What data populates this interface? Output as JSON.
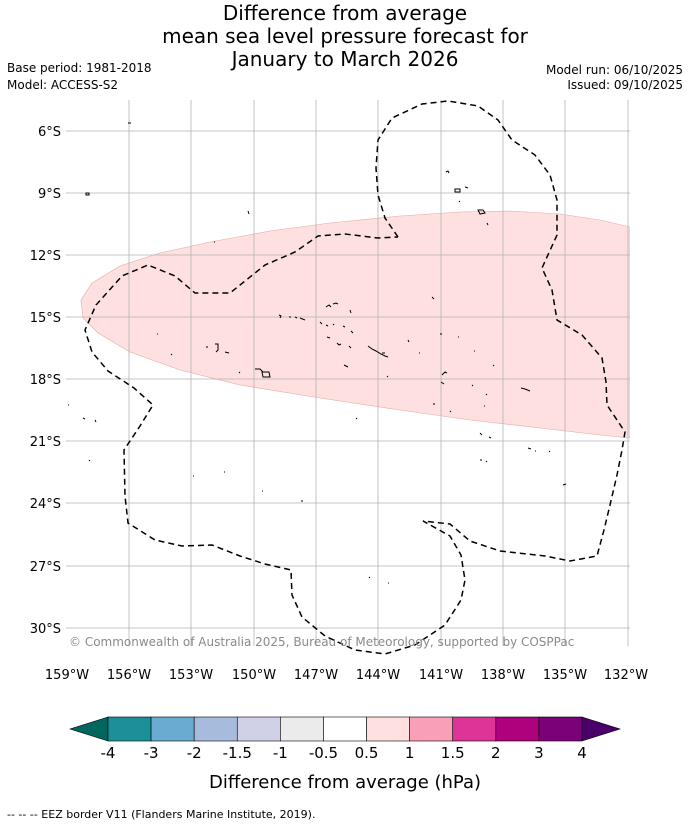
{
  "title": {
    "line1": "Difference from average",
    "line2": "mean sea level pressure forecast for",
    "line3": "January to March 2026"
  },
  "meta": {
    "base_period": "Base period: 1981-2018",
    "model": "Model: ACCESS-S2",
    "model_run": "Model run: 06/10/2025",
    "issued": "Issued: 09/10/2025"
  },
  "map": {
    "lat_labels": [
      "6°S",
      "9°S",
      "12°S",
      "15°S",
      "18°S",
      "21°S",
      "24°S",
      "27°S",
      "30°S"
    ],
    "lon_labels": [
      "159°W",
      "156°W",
      "153°W",
      "150°W",
      "147°W",
      "144°W",
      "141°W",
      "138°W",
      "135°W",
      "132°W"
    ],
    "anomaly_color": "#fde0df",
    "anomaly_category": "0.5 to 1 hPa",
    "copyright": "© Commonwealth of Australia 2025, Bureau of Meteorology, supported by COSPPac"
  },
  "colorbar": {
    "ticks": [
      "-4",
      "-3",
      "-2",
      "-1.5",
      "-1",
      "-0.5",
      "0.5",
      "1",
      "1.5",
      "2",
      "3",
      "4"
    ],
    "colors": [
      "#1b9099",
      "#6aabd1",
      "#a7bcdc",
      "#d0d1e6",
      "#ebebeb",
      "#ffffff",
      "#fde0df",
      "#f99fb7",
      "#dd3497",
      "#ae017e",
      "#7a0177"
    ],
    "low_color": "#01665e",
    "high_color": "#49006a",
    "label": "Difference from average (hPa)"
  },
  "footer": {
    "legend": "--  --  -- EEZ border V11 (Flanders Marine Institute, 2019)."
  }
}
